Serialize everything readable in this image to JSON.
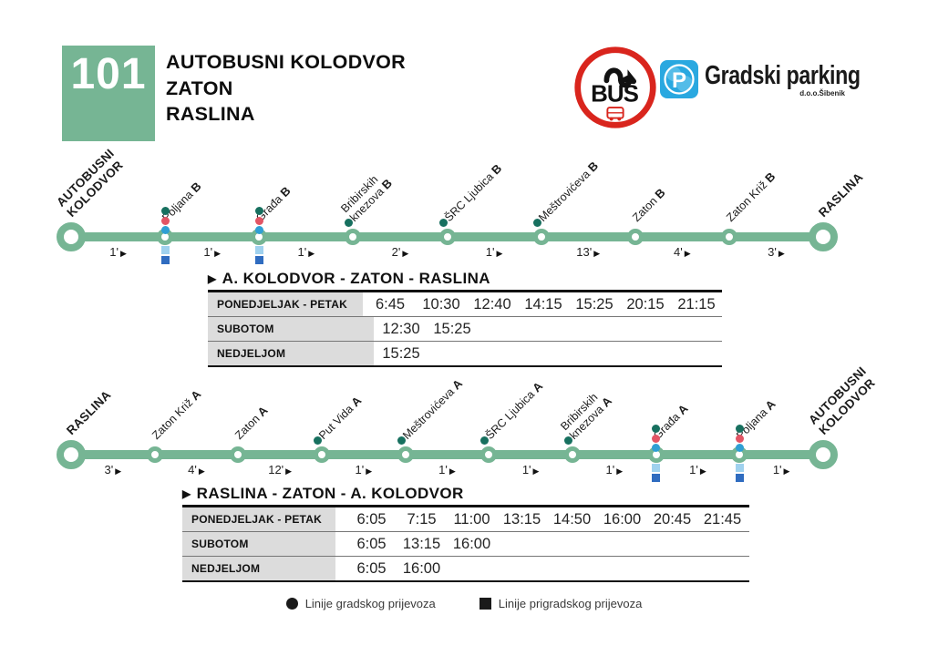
{
  "header": {
    "line_number": "101",
    "title_lines": [
      "AUTOBUSNI KOLODVOR",
      "ZATON",
      "RASLINA"
    ],
    "logos": {
      "bus": {
        "text": "BUŠ"
      },
      "parking": {
        "p": "P",
        "name": "Gradski parking",
        "sub": "d.o.o.Šibenik"
      }
    }
  },
  "colors": {
    "green": "#76b594",
    "teal": "#17705f",
    "red": "#e25565",
    "blue": "#2f9fd4",
    "lightblue": "#9fd1ee",
    "darkblue": "#2f6cc0",
    "bus_red": "#d9251d",
    "parking_blue": "#29a8e0"
  },
  "routes": [
    {
      "stops": [
        {
          "lines": [
            "AUTOBUSNI",
            "KOLODVOR"
          ],
          "terminal": true
        },
        {
          "lines": [
            "Poljana"
          ],
          "suffix": "B",
          "dots": [
            "teal",
            "red",
            "blue"
          ],
          "squares": [
            "lightblue",
            "darkblue"
          ]
        },
        {
          "lines": [
            "Građa"
          ],
          "suffix": "B",
          "dots": [
            "teal",
            "red",
            "blue"
          ],
          "squares": [
            "lightblue",
            "darkblue"
          ]
        },
        {
          "lines": [
            "Bribirskih",
            "knezova"
          ],
          "suffix": "B",
          "dots": [
            "teal"
          ]
        },
        {
          "lines": [
            "ŠRC Ljubica"
          ],
          "suffix": "B",
          "dots": [
            "teal"
          ]
        },
        {
          "lines": [
            "Meštrovićeva"
          ],
          "suffix": "B",
          "dots": [
            "teal"
          ]
        },
        {
          "lines": [
            "Zaton"
          ],
          "suffix": "B"
        },
        {
          "lines": [
            "Zaton Križ"
          ],
          "suffix": "B"
        },
        {
          "lines": [
            "RASLINA"
          ],
          "terminal": true
        }
      ],
      "segments": [
        "1'",
        "1'",
        "1'",
        "2'",
        "1'",
        "13'",
        "4'",
        "3'"
      ],
      "timetable": {
        "title": "A. KOLODVOR - ZATON - RASLINA",
        "rows": [
          {
            "label": "PONEDJELJAK - PETAK",
            "times": [
              "6:45",
              "10:30",
              "12:40",
              "14:15",
              "15:25",
              "20:15",
              "21:15"
            ]
          },
          {
            "label": "SUBOTOM",
            "times": [
              "12:30",
              "15:25"
            ]
          },
          {
            "label": "NEDJELJOM",
            "times": [
              "15:25"
            ]
          }
        ]
      }
    },
    {
      "stops": [
        {
          "lines": [
            "RASLINA"
          ],
          "terminal": true
        },
        {
          "lines": [
            "Zaton Križ"
          ],
          "suffix": "A"
        },
        {
          "lines": [
            "Zaton"
          ],
          "suffix": "A"
        },
        {
          "lines": [
            "Put Vida"
          ],
          "suffix": "A",
          "dots": [
            "teal"
          ]
        },
        {
          "lines": [
            "Meštrovićeva"
          ],
          "suffix": "A",
          "dots": [
            "teal"
          ]
        },
        {
          "lines": [
            "ŠRC Ljubica"
          ],
          "suffix": "A",
          "dots": [
            "teal"
          ]
        },
        {
          "lines": [
            "Bribirskih",
            "knezova"
          ],
          "suffix": "A",
          "dots": [
            "teal"
          ]
        },
        {
          "lines": [
            "Građa"
          ],
          "suffix": "A",
          "dots": [
            "teal",
            "red",
            "blue"
          ],
          "squares": [
            "lightblue",
            "darkblue"
          ]
        },
        {
          "lines": [
            "Poljana"
          ],
          "suffix": "A",
          "dots": [
            "teal",
            "red",
            "blue"
          ],
          "squares": [
            "lightblue",
            "darkblue"
          ]
        },
        {
          "lines": [
            "AUTOBUSNI",
            "KOLODVOR"
          ],
          "terminal": true
        }
      ],
      "segments": [
        "3'",
        "4'",
        "12'",
        "1'",
        "1'",
        "1'",
        "1'",
        "1'",
        "1'"
      ],
      "timetable": {
        "title": "RASLINA - ZATON - A. KOLODVOR",
        "rows": [
          {
            "label": "PONEDJELJAK - PETAK",
            "times": [
              "6:05",
              "7:15",
              "11:00",
              "13:15",
              "14:50",
              "16:00",
              "20:45",
              "21:45"
            ]
          },
          {
            "label": "SUBOTOM",
            "times": [
              "6:05",
              "13:15",
              "16:00"
            ]
          },
          {
            "label": "NEDJELJOM",
            "times": [
              "6:05",
              "16:00"
            ]
          }
        ]
      }
    }
  ],
  "legend": [
    {
      "shape": "circle",
      "label": "Linije gradskog prijevoza"
    },
    {
      "shape": "square",
      "label": "Linije prigradskog prijevoza"
    }
  ]
}
